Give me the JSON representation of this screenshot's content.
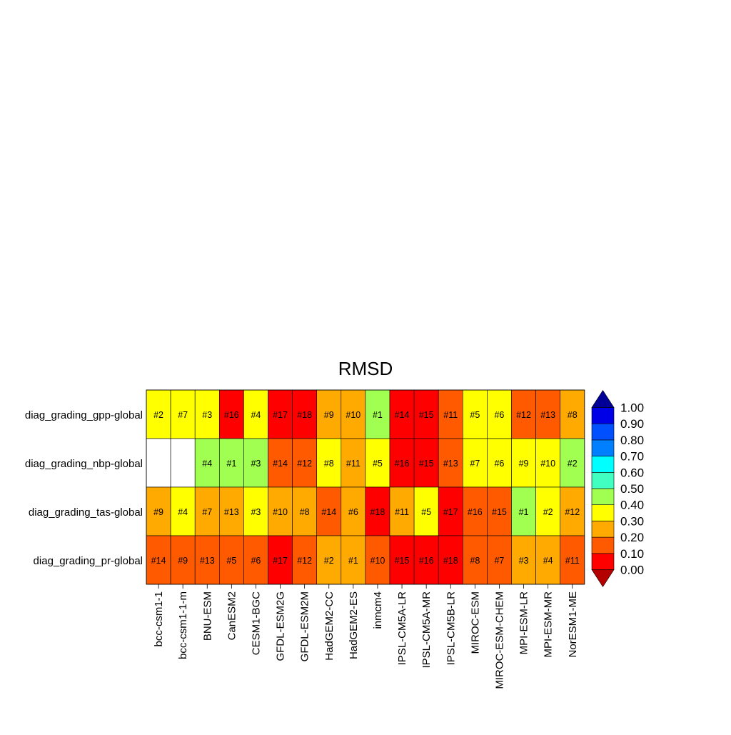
{
  "chart_data": {
    "type": "heatmap",
    "title": "RMSD",
    "models": [
      "bcc-csm1-1",
      "bcc-csm1-1-m",
      "BNU-ESM",
      "CanESM2",
      "CESM1-BGC",
      "GFDL-ESM2G",
      "GFDL-ESM2M",
      "HadGEM2-CC",
      "HadGEM2-ES",
      "inmcm4",
      "IPSL-CM5A-LR",
      "IPSL-CM5A-MR",
      "IPSL-CM5B-LR",
      "MIROC-ESM",
      "MIROC-ESM-CHEM",
      "MPI-ESM-LR",
      "MPI-ESM-MR",
      "NorESM1-ME"
    ],
    "rows": [
      {
        "label": "diag_grading_gpp-global",
        "values": [
          0.35,
          0.35,
          0.35,
          0.05,
          0.35,
          0.05,
          0.05,
          0.25,
          0.25,
          0.45,
          0.05,
          0.05,
          0.15,
          0.35,
          0.35,
          0.15,
          0.15,
          0.25
        ],
        "ranks": [
          "#2",
          "#7",
          "#3",
          "#16",
          "#4",
          "#17",
          "#18",
          "#9",
          "#10",
          "#1",
          "#14",
          "#15",
          "#11",
          "#5",
          "#6",
          "#12",
          "#13",
          "#8"
        ]
      },
      {
        "label": "diag_grading_nbp-global",
        "values": [
          null,
          null,
          0.45,
          0.45,
          0.45,
          0.15,
          0.15,
          0.35,
          0.25,
          0.35,
          0.05,
          0.05,
          0.15,
          0.35,
          0.35,
          0.35,
          0.35,
          0.45
        ],
        "ranks": [
          "",
          "",
          "#4",
          "#1",
          "#3",
          "#14",
          "#12",
          "#8",
          "#11",
          "#5",
          "#16",
          "#15",
          "#13",
          "#7",
          "#6",
          "#9",
          "#10",
          "#2"
        ]
      },
      {
        "label": "diag_grading_tas-global",
        "values": [
          0.25,
          0.35,
          0.25,
          0.25,
          0.35,
          0.25,
          0.25,
          0.15,
          0.25,
          0.05,
          0.25,
          0.35,
          0.05,
          0.15,
          0.15,
          0.45,
          0.35,
          0.25
        ],
        "ranks": [
          "#9",
          "#4",
          "#7",
          "#13",
          "#3",
          "#10",
          "#8",
          "#14",
          "#6",
          "#18",
          "#11",
          "#5",
          "#17",
          "#16",
          "#15",
          "#1",
          "#2",
          "#12"
        ]
      },
      {
        "label": "diag_grading_pr-global",
        "values": [
          0.15,
          0.15,
          0.15,
          0.15,
          0.15,
          0.05,
          0.15,
          0.25,
          0.25,
          0.15,
          0.05,
          0.05,
          0.05,
          0.15,
          0.15,
          0.25,
          0.25,
          0.15
        ],
        "ranks": [
          "#14",
          "#9",
          "#13",
          "#5",
          "#6",
          "#17",
          "#12",
          "#2",
          "#1",
          "#10",
          "#15",
          "#16",
          "#18",
          "#8",
          "#7",
          "#3",
          "#4",
          "#11"
        ]
      }
    ],
    "colorbar": {
      "levels": [
        0.0,
        0.1,
        0.2,
        0.3,
        0.4,
        0.5,
        0.6,
        0.7,
        0.8,
        0.9,
        1.0
      ],
      "tick_labels": [
        "0.00",
        "0.10",
        "0.20",
        "0.30",
        "0.40",
        "0.50",
        "0.60",
        "0.70",
        "0.80",
        "0.90",
        "1.00"
      ],
      "colors": [
        "#ff0000",
        "#ff5a00",
        "#ffaa00",
        "#ffff00",
        "#a0ff50",
        "#40ffc0",
        "#00ffff",
        "#0080ff",
        "#0050ff",
        "#0000e6"
      ],
      "under_color": "#b40000",
      "over_color": "#000096",
      "extend": "both"
    }
  }
}
